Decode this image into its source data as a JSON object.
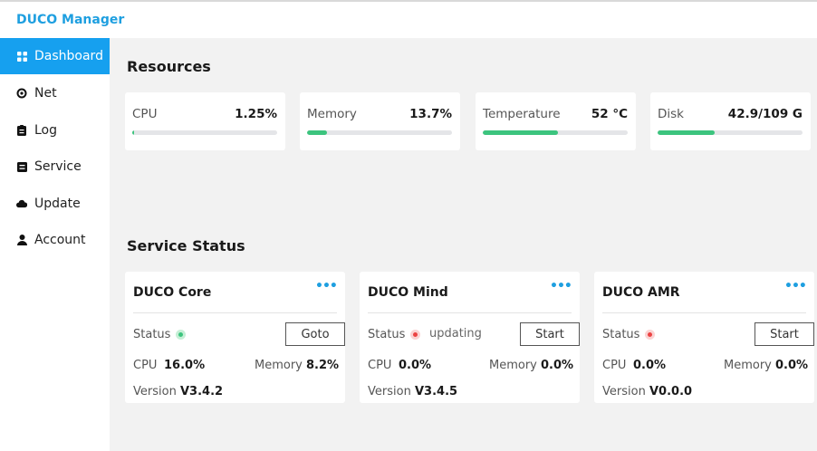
{
  "app": {
    "title": "DUCO Manager"
  },
  "sidebar": {
    "items": [
      {
        "label": "Dashboard",
        "icon": "grid-icon",
        "active": true
      },
      {
        "label": "Net",
        "icon": "target-icon",
        "active": false
      },
      {
        "label": "Log",
        "icon": "log-icon",
        "active": false
      },
      {
        "label": "Service",
        "icon": "service-icon",
        "active": false
      },
      {
        "label": "Update",
        "icon": "cloud-icon",
        "active": false
      },
      {
        "label": "Account",
        "icon": "user-icon",
        "active": false
      }
    ]
  },
  "resources": {
    "title": "Resources",
    "cards": [
      {
        "label": "CPU",
        "value": "1.25%",
        "level": 0.0125
      },
      {
        "label": "Memory",
        "value": "13.7%",
        "level": 0.137
      },
      {
        "label": "Temperature",
        "value": "52 °C",
        "level": 0.52
      },
      {
        "label": "Disk",
        "value": "42.9/109 G",
        "level": 0.394
      }
    ]
  },
  "services": {
    "title": "Service Status",
    "status_label": "Status",
    "cpu_label": "CPU",
    "memory_label": "Memory",
    "version_label": "Version",
    "more_glyph": "•••",
    "cards": [
      {
        "name": "DUCO Core",
        "status": "running",
        "state_text": "",
        "button": "Goto",
        "cpu": "16.0%",
        "memory": "8.2%",
        "version": "V3.4.2"
      },
      {
        "name": "DUCO Mind",
        "status": "stopped",
        "state_text": "updating",
        "button": "Start",
        "cpu": "0.0%",
        "memory": "0.0%",
        "version": "V3.4.5"
      },
      {
        "name": "DUCO AMR",
        "status": "stopped",
        "state_text": "",
        "button": "Start",
        "cpu": "0.0%",
        "memory": "0.0%",
        "version": "V0.0.0"
      }
    ]
  },
  "colors": {
    "brand": "#1e9fe0",
    "active_nav": "#16a0ef",
    "progress": "#3cc47e",
    "status_ok": "#3cc47e",
    "status_error": "#ec4343"
  }
}
